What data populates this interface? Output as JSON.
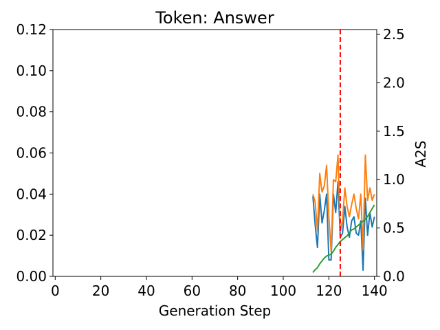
{
  "chart_data": {
    "type": "line",
    "title": "Token: Answer",
    "xlabel": "Generation Step",
    "ylabel": "",
    "y2label": "A2S",
    "xlim": [
      -1,
      141
    ],
    "ylim": [
      0,
      0.12
    ],
    "y2lim": [
      0,
      2.55
    ],
    "xticks": [
      0,
      20,
      40,
      60,
      80,
      100,
      120,
      140
    ],
    "yticks": [
      0.0,
      0.02,
      0.04,
      0.06,
      0.08,
      0.1,
      0.12
    ],
    "yticklabels": [
      "0.00",
      "0.02",
      "0.04",
      "0.06",
      "0.08",
      "0.10",
      "0.12"
    ],
    "y2ticks": [
      0.0,
      0.5,
      1.0,
      1.5,
      2.0,
      2.5
    ],
    "y2ticklabels": [
      "0.0",
      "0.5",
      "1.0",
      "1.5",
      "2.0",
      "2.5"
    ],
    "grid": false,
    "vline": {
      "x": 125,
      "color": "#ff0000",
      "style": "dashed"
    },
    "series": [
      {
        "axis": "left",
        "color": "#1f77b4",
        "x": [
          113,
          114,
          115,
          116,
          117,
          118,
          119,
          120,
          121,
          122,
          123,
          124,
          125,
          126,
          127,
          128,
          129,
          130,
          131,
          132,
          133,
          134,
          135,
          136,
          137,
          138,
          139,
          140
        ],
        "values": [
          0.039,
          0.025,
          0.014,
          0.04,
          0.026,
          0.032,
          0.04,
          0.008,
          0.008,
          0.04,
          0.031,
          0.046,
          0.019,
          0.021,
          0.034,
          0.024,
          0.019,
          0.027,
          0.029,
          0.021,
          0.02,
          0.027,
          0.003,
          0.038,
          0.02,
          0.031,
          0.024,
          0.029
        ]
      },
      {
        "axis": "left",
        "color": "#ff7f0e",
        "x": [
          113,
          114,
          115,
          116,
          117,
          118,
          119,
          120,
          121,
          122,
          123,
          124,
          125,
          126,
          127,
          128,
          129,
          130,
          131,
          132,
          133,
          134,
          135,
          136,
          137,
          138,
          139,
          140
        ],
        "values": [
          0.04,
          0.036,
          0.022,
          0.05,
          0.041,
          0.044,
          0.054,
          0.029,
          0.012,
          0.047,
          0.046,
          0.059,
          0.022,
          0.027,
          0.043,
          0.034,
          0.029,
          0.035,
          0.04,
          0.033,
          0.028,
          0.04,
          0.013,
          0.059,
          0.037,
          0.043,
          0.037,
          0.04
        ]
      },
      {
        "axis": "right",
        "color": "#2ca02c",
        "x": [
          113,
          114,
          115,
          116,
          117,
          118,
          119,
          120,
          121,
          122,
          123,
          124,
          125,
          126,
          127,
          128,
          129,
          130,
          131,
          132,
          133,
          134,
          135,
          136,
          137,
          138,
          139,
          140
        ],
        "values": [
          0.04,
          0.07,
          0.09,
          0.13,
          0.16,
          0.19,
          0.21,
          0.22,
          0.23,
          0.26,
          0.3,
          0.33,
          0.36,
          0.38,
          0.4,
          0.42,
          0.45,
          0.48,
          0.49,
          0.51,
          0.53,
          0.55,
          0.57,
          0.59,
          0.62,
          0.66,
          0.7,
          0.74
        ]
      }
    ]
  }
}
